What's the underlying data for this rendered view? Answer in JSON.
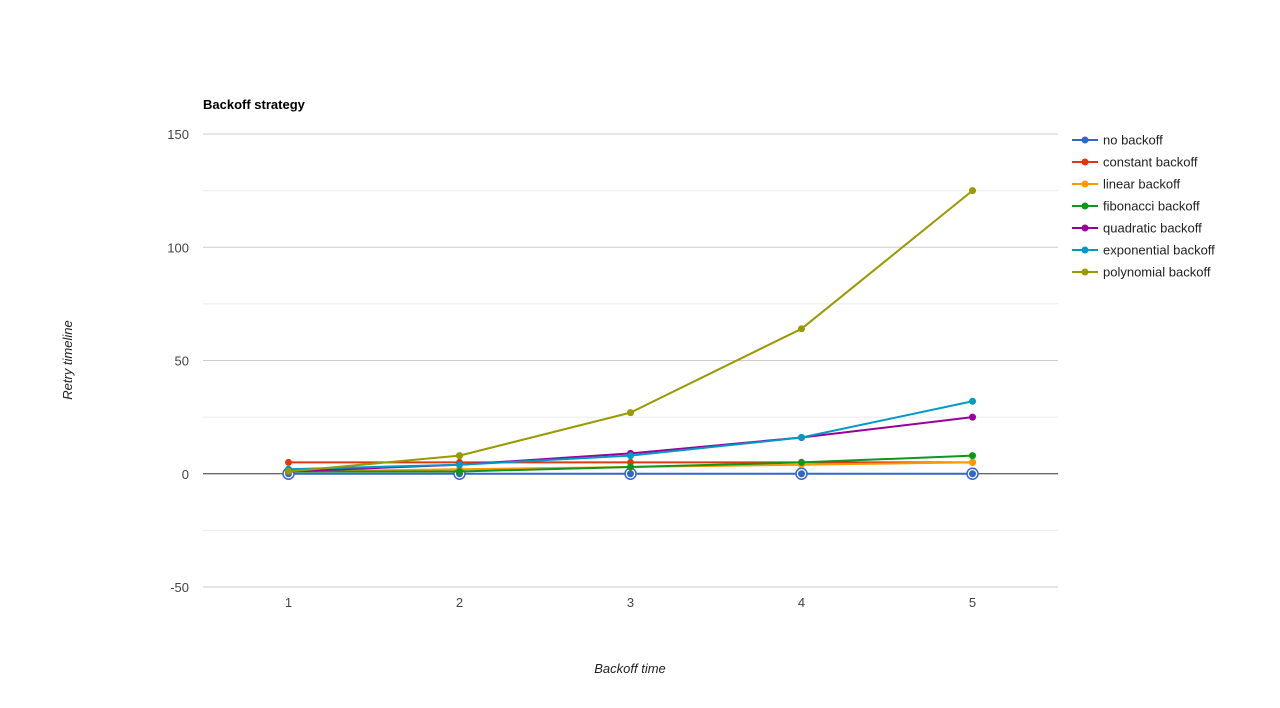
{
  "chart_data": {
    "type": "line",
    "title": "Backoff strategy",
    "xlabel": "Backoff time",
    "ylabel": "Retry timeline",
    "x": [
      1,
      2,
      3,
      4,
      5
    ],
    "xlim": [
      0.5,
      5.5
    ],
    "ylim": [
      -50,
      150
    ],
    "yticks": [
      -50,
      0,
      50,
      100,
      150
    ],
    "grid": true,
    "legend_position": "right",
    "series": [
      {
        "name": "no backoff",
        "color": "#3366cc",
        "values": [
          0,
          0,
          0,
          0,
          0
        ]
      },
      {
        "name": "constant backoff",
        "color": "#dc3912",
        "values": [
          5,
          5,
          5,
          5,
          5
        ]
      },
      {
        "name": "linear backoff",
        "color": "#ff9900",
        "values": [
          1,
          2,
          3,
          4,
          5
        ]
      },
      {
        "name": "fibonacci backoff",
        "color": "#109618",
        "values": [
          1,
          1,
          3,
          5,
          8
        ]
      },
      {
        "name": "quadratic backoff",
        "color": "#990099",
        "values": [
          1,
          4,
          9,
          16,
          25
        ]
      },
      {
        "name": "exponential backoff",
        "color": "#0099c6",
        "values": [
          2,
          4,
          8,
          16,
          32
        ]
      },
      {
        "name": "polynomial backoff",
        "color": "#999900",
        "values": [
          1,
          8,
          27,
          64,
          125
        ]
      }
    ]
  }
}
